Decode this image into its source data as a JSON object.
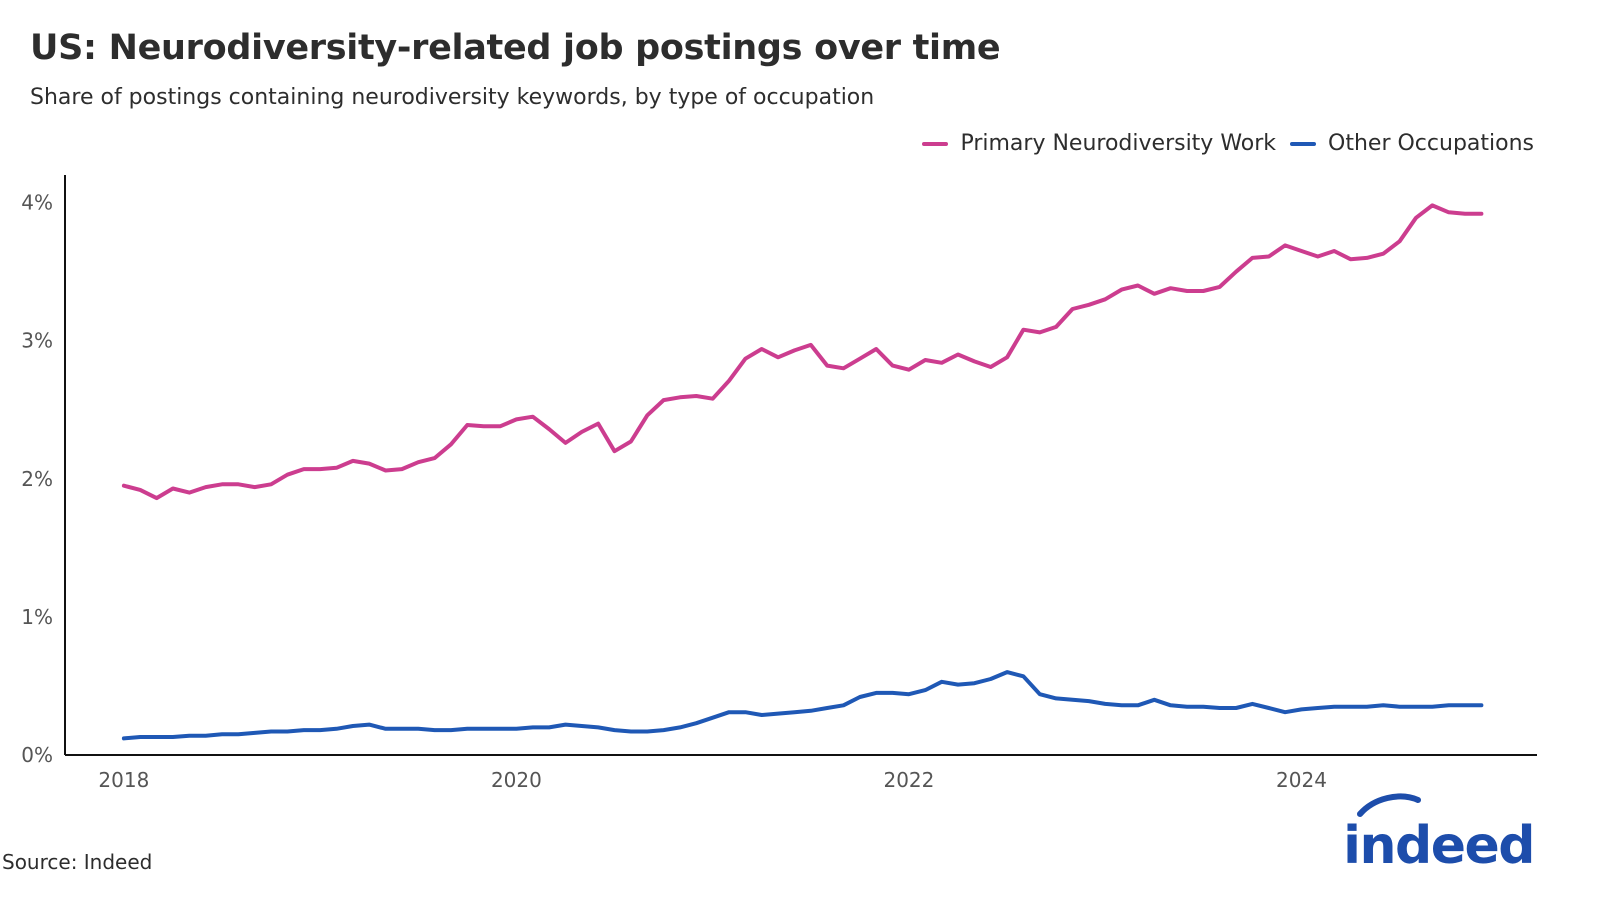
{
  "title": "US: Neurodiversity-related job postings over time",
  "subtitle": "Share of postings containing neurodiversity keywords, by type of occupation",
  "source": "Source: Indeed",
  "logo_text": "indeed",
  "colors": {
    "primary": "#cc3d8f",
    "other": "#1f58b5",
    "axis": "#111111",
    "text": "#2d2d2d"
  },
  "chart_data": {
    "type": "line",
    "title": "US: Neurodiversity-related job postings over time",
    "subtitle": "Share of postings containing neurodiversity keywords, by type of occupation",
    "xlabel": "",
    "ylabel": "",
    "xlim": [
      2017.7,
      2025.2
    ],
    "ylim": [
      0,
      4.2
    ],
    "grid": false,
    "legend_position": "top-right",
    "x_ticks": [
      2018,
      2020,
      2022,
      2024
    ],
    "x_tick_labels": [
      "2018",
      "2020",
      "2022",
      "2024"
    ],
    "y_ticks": [
      0,
      1,
      2,
      3,
      4
    ],
    "y_tick_labels": [
      "0%",
      "1%",
      "2%",
      "3%",
      "4%"
    ],
    "x_start": "2018-01",
    "x_step_months": 1,
    "series": [
      {
        "name": "Primary Neurodiversity Work",
        "color": "#cc3d8f",
        "values": [
          1.95,
          1.92,
          1.86,
          1.93,
          1.9,
          1.94,
          1.96,
          1.96,
          1.94,
          1.96,
          2.03,
          2.07,
          2.07,
          2.08,
          2.13,
          2.11,
          2.06,
          2.07,
          2.12,
          2.15,
          2.25,
          2.39,
          2.38,
          2.38,
          2.43,
          2.45,
          2.36,
          2.26,
          2.34,
          2.4,
          2.2,
          2.27,
          2.46,
          2.57,
          2.59,
          2.6,
          2.58,
          2.71,
          2.87,
          2.94,
          2.88,
          2.93,
          2.97,
          2.82,
          2.8,
          2.87,
          2.94,
          2.82,
          2.79,
          2.86,
          2.84,
          2.9,
          2.85,
          2.81,
          2.88,
          3.08,
          3.06,
          3.1,
          3.23,
          3.26,
          3.3,
          3.37,
          3.4,
          3.34,
          3.38,
          3.36,
          3.36,
          3.39,
          3.5,
          3.6,
          3.61,
          3.69,
          3.65,
          3.61,
          3.65,
          3.59,
          3.6,
          3.63,
          3.72,
          3.89,
          3.98,
          3.93,
          3.92,
          3.92
        ]
      },
      {
        "name": "Other Occupations",
        "color": "#1f58b5",
        "values": [
          0.12,
          0.13,
          0.13,
          0.13,
          0.14,
          0.14,
          0.15,
          0.15,
          0.16,
          0.17,
          0.17,
          0.18,
          0.18,
          0.19,
          0.21,
          0.22,
          0.19,
          0.19,
          0.19,
          0.18,
          0.18,
          0.19,
          0.19,
          0.19,
          0.19,
          0.2,
          0.2,
          0.22,
          0.21,
          0.2,
          0.18,
          0.17,
          0.17,
          0.18,
          0.2,
          0.23,
          0.27,
          0.31,
          0.31,
          0.29,
          0.3,
          0.31,
          0.32,
          0.34,
          0.36,
          0.42,
          0.45,
          0.45,
          0.44,
          0.47,
          0.53,
          0.51,
          0.52,
          0.55,
          0.6,
          0.57,
          0.44,
          0.41,
          0.4,
          0.39,
          0.37,
          0.36,
          0.36,
          0.4,
          0.36,
          0.35,
          0.35,
          0.34,
          0.34,
          0.37,
          0.34,
          0.31,
          0.33,
          0.34,
          0.35,
          0.35,
          0.35,
          0.36,
          0.35,
          0.35,
          0.35,
          0.36,
          0.36,
          0.36
        ]
      }
    ]
  }
}
